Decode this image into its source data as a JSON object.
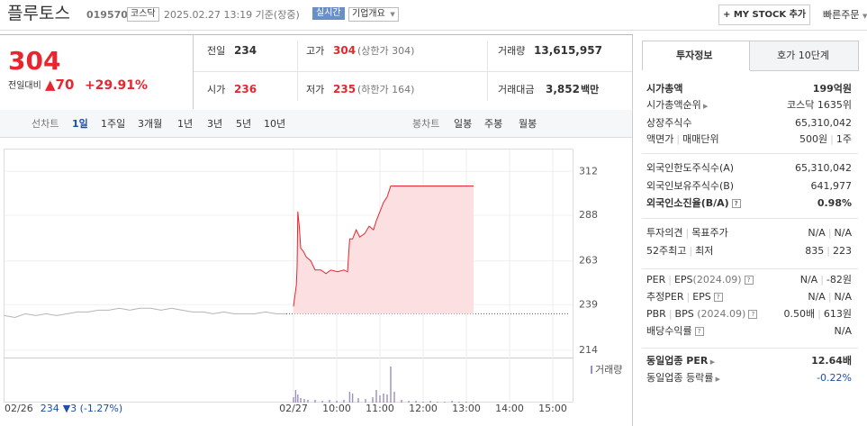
{
  "header": {
    "name": "플루토스",
    "code": "019570",
    "market": "코스닥",
    "timestamp": "2025.02.27 13:19 기준(장중)",
    "realtime": "실시간",
    "company_overview": "기업개요",
    "my_stock": "+ MY STOCK 추가",
    "quick_order": "빠른주문"
  },
  "price": {
    "current": "304",
    "change_label": "전일대비",
    "change": "70",
    "change_pct": "+29.91%"
  },
  "stats": [
    [
      {
        "label": "전일",
        "value": "234"
      },
      {
        "label": "고가",
        "value": "304",
        "note": "(상한가 304)"
      },
      {
        "label": "거래량",
        "value": "13,615,957"
      }
    ],
    [
      {
        "label": "시가",
        "value": "236"
      },
      {
        "label": "저가",
        "value": "235",
        "note": "(하한가 164)"
      },
      {
        "label": "거래대금",
        "value": "3,852",
        "unit": "백만"
      }
    ]
  ],
  "chart_tabs": {
    "line_label": "선차트",
    "line_periods": [
      "1일",
      "1주일",
      "3개월",
      "1년",
      "3년",
      "5년",
      "10년"
    ],
    "candle_label": "봉차트",
    "candle_periods": [
      "일봉",
      "주봉",
      "월봉"
    ]
  },
  "chart_data": {
    "type": "line",
    "ylim": [
      211,
      323
    ],
    "yticks": [
      214,
      239,
      263,
      288,
      312
    ],
    "xlim": [
      0,
      390
    ],
    "xticks": [
      {
        "value": 0,
        "label": "02/27"
      },
      {
        "value": 60,
        "label": "10:00"
      },
      {
        "value": 120,
        "label": "11:00"
      },
      {
        "value": 180,
        "label": "12:00"
      },
      {
        "value": 240,
        "label": "13:00"
      },
      {
        "value": 300,
        "label": "14:00"
      },
      {
        "value": 360,
        "label": "15:00"
      }
    ],
    "prev_day": {
      "date": "02/26",
      "close": "234",
      "change": "▼3 (-1.27%)",
      "color": "#b5b5b5",
      "values": [
        233,
        232,
        234,
        233,
        234,
        233,
        234,
        235,
        235,
        236,
        236,
        237,
        236,
        237,
        237,
        236,
        237,
        236,
        235,
        235,
        234,
        235,
        234,
        234,
        234,
        235,
        234,
        234
      ]
    },
    "reference_line": 234,
    "series": [
      {
        "color": "#e8262f",
        "fill": "#fbdfe1",
        "x": [
          0,
          4,
          5,
          6,
          8,
          10,
          14,
          18,
          24,
          30,
          38,
          45,
          52,
          61,
          70,
          75,
          78,
          82,
          87,
          92,
          99,
          105,
          111,
          115,
          120,
          125,
          130,
          135,
          142,
          250
        ],
        "values": [
          238,
          250,
          260,
          290,
          282,
          270,
          268,
          265,
          263,
          258,
          258,
          256,
          258,
          257,
          258,
          257,
          275,
          275,
          280,
          276,
          278,
          282,
          280,
          285,
          290,
          295,
          298,
          304,
          304,
          304
        ]
      }
    ],
    "volume": {
      "name": "거래량",
      "color": "#9a8fc2",
      "x": [
        0,
        3,
        6,
        10,
        15,
        20,
        30,
        40,
        50,
        60,
        70,
        78,
        82,
        90,
        100,
        110,
        115,
        120,
        125,
        130,
        135,
        140,
        150,
        160,
        170,
        180,
        190,
        200,
        210,
        220,
        230,
        240,
        250
      ],
      "values": [
        6,
        14,
        9,
        5,
        4,
        3,
        3,
        2,
        3,
        2,
        3,
        12,
        10,
        5,
        4,
        6,
        14,
        8,
        10,
        9,
        40,
        12,
        3,
        2,
        2,
        1,
        2,
        1,
        1,
        2,
        1,
        1,
        1
      ]
    }
  },
  "side_panel": {
    "tabs": [
      "투자정보",
      "호가 10단계"
    ],
    "market_cap": {
      "label": "시가총액",
      "value": "199억원"
    },
    "cap_rank": {
      "label": "시가총액순위",
      "value": "코스닥 1635위"
    },
    "shares": {
      "label": "상장주식수",
      "value": "65,310,042"
    },
    "par": {
      "labels": [
        "액면가",
        "매매단위"
      ],
      "values": [
        "500원",
        "1주"
      ]
    },
    "foreign_limit": {
      "label": "외국인한도주식수(A)",
      "value": "65,310,042"
    },
    "foreign_hold": {
      "label": "외국인보유주식수(B)",
      "value": "641,977"
    },
    "foreign_rate": {
      "label": "외국인소진율(B/A)",
      "value": "0.98%"
    },
    "opinion": {
      "labels": [
        "투자의견",
        "목표주가"
      ],
      "values": [
        "N/A",
        "N/A"
      ]
    },
    "week52": {
      "labels": [
        "52주최고",
        "최저"
      ],
      "values": [
        "835",
        "223"
      ]
    },
    "per": {
      "labels": [
        "PER",
        "EPS",
        "(2024.09)"
      ],
      "values": [
        "N/A",
        "-82원"
      ]
    },
    "est_per": {
      "labels": [
        "추정PER",
        "EPS"
      ],
      "values": [
        "N/A",
        "N/A"
      ]
    },
    "pbr": {
      "labels": [
        "PBR",
        "BPS",
        "(2024.09)"
      ],
      "values": [
        "0.50배",
        "613원"
      ]
    },
    "dividend": {
      "label": "배당수익률",
      "value": "N/A"
    },
    "sector_per": {
      "label": "동일업종 PER",
      "value": "12.64배"
    },
    "sector_rate": {
      "label": "동일업종 등락률",
      "value": "-0.22%"
    }
  }
}
